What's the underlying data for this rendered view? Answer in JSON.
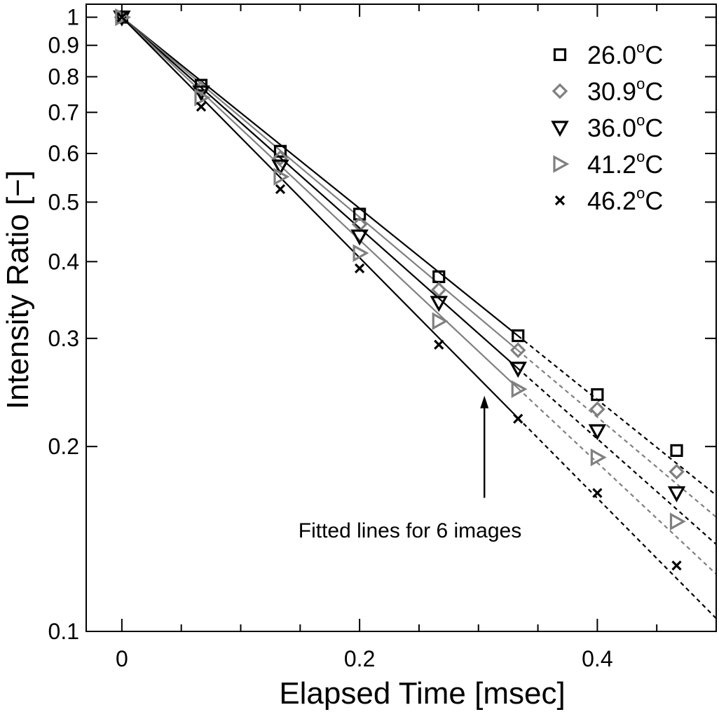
{
  "chart_data": {
    "type": "scatter",
    "xlabel": "Elapsed Time [msec]",
    "ylabel": "Intensity Ratio [−]",
    "xlim": [
      -0.03,
      0.5
    ],
    "ylim": [
      0.1,
      1.05
    ],
    "yscale": "log",
    "x_ticks": [
      0,
      0.2,
      0.4
    ],
    "x_tick_labels": [
      "0",
      "0.2",
      "0.4"
    ],
    "y_ticks": [
      0.1,
      0.2,
      0.3,
      0.4,
      0.5,
      0.6,
      0.7,
      0.8,
      0.9,
      1
    ],
    "y_tick_labels": [
      "0.1",
      "0.2",
      "0.3",
      "0.4",
      "0.5",
      "0.6",
      "0.7",
      "0.8",
      "0.9",
      "1"
    ],
    "legend_position": "top-right",
    "degree_symbol": "o",
    "fit_extend_to": 0.5,
    "series": [
      {
        "name": "26.0",
        "unit": "C",
        "marker": "square",
        "color": "#000000",
        "x": [
          0,
          0.0667,
          0.1333,
          0.2,
          0.2667,
          0.3333,
          0.4,
          0.4667
        ],
        "y": [
          1.0,
          0.775,
          0.605,
          0.478,
          0.378,
          0.303,
          0.243,
          0.197
        ],
        "fit_slope_per_msec": -3.584
      },
      {
        "name": "30.9",
        "unit": "C",
        "marker": "diamond",
        "color": "#808080",
        "x": [
          0,
          0.0667,
          0.1333,
          0.2,
          0.2667,
          0.3333,
          0.4,
          0.4667
        ],
        "y": [
          1.0,
          0.765,
          0.59,
          0.46,
          0.36,
          0.287,
          0.23,
          0.182
        ],
        "fit_slope_per_msec": -3.748
      },
      {
        "name": "36.0",
        "unit": "C",
        "marker": "triangle-down",
        "color": "#000000",
        "x": [
          0,
          0.0667,
          0.1333,
          0.2,
          0.2667,
          0.3333,
          0.4,
          0.4667
        ],
        "y": [
          1.0,
          0.755,
          0.572,
          0.44,
          0.343,
          0.268,
          0.212,
          0.168
        ],
        "fit_slope_per_msec": -3.952
      },
      {
        "name": "41.2",
        "unit": "C",
        "marker": "triangle-right",
        "color": "#808080",
        "x": [
          0,
          0.0667,
          0.1333,
          0.2,
          0.2667,
          0.3333,
          0.4,
          0.4667
        ],
        "y": [
          1.0,
          0.74,
          0.55,
          0.413,
          0.32,
          0.248,
          0.192,
          0.151
        ],
        "fit_slope_per_msec": -4.175
      },
      {
        "name": "46.2",
        "unit": "C",
        "marker": "x",
        "color": "#000000",
        "x": [
          0,
          0.0667,
          0.1333,
          0.2,
          0.2667,
          0.3333,
          0.4,
          0.4667
        ],
        "y": [
          1.0,
          0.715,
          0.525,
          0.39,
          0.293,
          0.222,
          0.168,
          0.128
        ],
        "fit_slope_per_msec": -4.508
      }
    ],
    "annotations": [
      {
        "text": "Fitted lines for 6 images",
        "arrow_x": 0.305,
        "arrow_y_from": 0.165,
        "arrow_y_to": 0.242,
        "text_x": 0.305,
        "text_y": 0.153
      }
    ]
  }
}
